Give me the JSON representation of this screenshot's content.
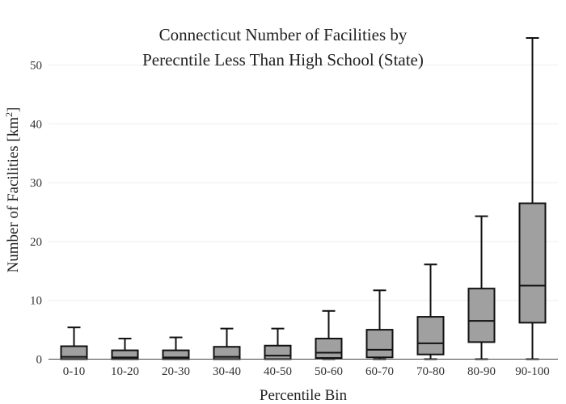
{
  "chart_data": {
    "type": "box",
    "title_line1": "Connecticut Number of Facilities by",
    "title_line2": "Perecntile Less Than High School (State)",
    "xlabel": "Percentile Bin",
    "ylabel": "Number of Facilities  [km",
    "ylabel_sup": "2",
    "ylabel_close": "]",
    "ylim": [
      0,
      55
    ],
    "yticks": [
      0,
      10,
      20,
      30,
      40,
      50
    ],
    "grid": true,
    "box_color": "#a0a0a0",
    "categories": [
      "0-10",
      "10-20",
      "20-30",
      "30-40",
      "40-50",
      "50-60",
      "60-70",
      "70-80",
      "80-90",
      "90-100"
    ],
    "boxes": [
      {
        "min": 0,
        "q1": 0,
        "median": 0.4,
        "q3": 2.2,
        "max": 5.4
      },
      {
        "min": 0,
        "q1": 0,
        "median": 0.3,
        "q3": 1.5,
        "max": 3.5
      },
      {
        "min": 0,
        "q1": 0,
        "median": 0.3,
        "q3": 1.5,
        "max": 3.7
      },
      {
        "min": 0,
        "q1": 0,
        "median": 0.4,
        "q3": 2.1,
        "max": 5.2
      },
      {
        "min": 0,
        "q1": 0,
        "median": 0.6,
        "q3": 2.3,
        "max": 5.2
      },
      {
        "min": 0,
        "q1": 0.2,
        "median": 1.1,
        "q3": 3.5,
        "max": 8.2
      },
      {
        "min": 0,
        "q1": 0.3,
        "median": 1.6,
        "q3": 5.0,
        "max": 11.7
      },
      {
        "min": 0,
        "q1": 0.8,
        "median": 2.7,
        "q3": 7.2,
        "max": 16.1
      },
      {
        "min": 0,
        "q1": 2.9,
        "median": 6.5,
        "q3": 12.0,
        "max": 24.3
      },
      {
        "min": 0,
        "q1": 6.2,
        "median": 12.5,
        "q3": 26.5,
        "max": 54.6
      }
    ]
  }
}
